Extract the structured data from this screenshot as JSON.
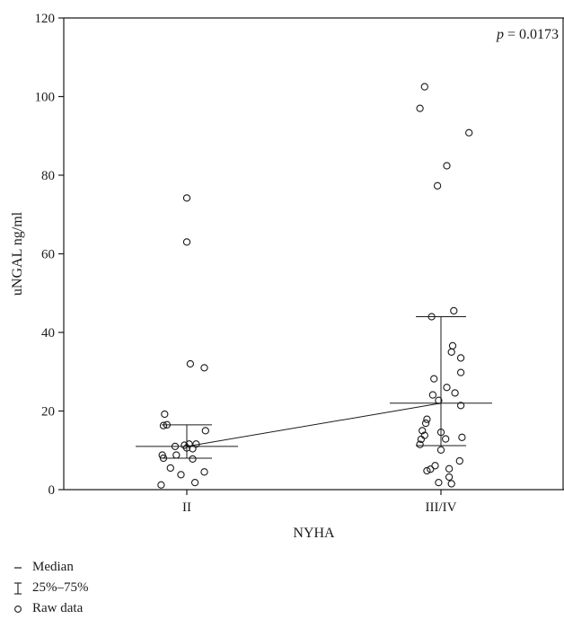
{
  "chart_data": {
    "type": "scatter",
    "xlabel": "NYHA",
    "ylabel": "uNGAL ng/ml",
    "categories": [
      "II",
      "III/IV"
    ],
    "ylim": [
      0,
      120
    ],
    "yticks": [
      0,
      20,
      40,
      60,
      80,
      100,
      120
    ],
    "annotation": {
      "p_label": "p",
      "p_text": " = 0.0173"
    },
    "groups": [
      {
        "category": "II",
        "median": 11,
        "q1": 8,
        "q3": 16.5,
        "raw": [
          {
            "jitter": -0.22,
            "y": 1.2
          },
          {
            "jitter": -0.14,
            "y": 5.5
          },
          {
            "jitter": -0.05,
            "y": 3.8
          },
          {
            "jitter": 0.07,
            "y": 1.8
          },
          {
            "jitter": 0.15,
            "y": 4.5
          },
          {
            "jitter": -0.21,
            "y": 8.8
          },
          {
            "jitter": -0.2,
            "y": 8
          },
          {
            "jitter": -0.09,
            "y": 8.8
          },
          {
            "jitter": 0.05,
            "y": 7.8
          },
          {
            "jitter": -0.1,
            "y": 11
          },
          {
            "jitter": -0.02,
            "y": 11.3
          },
          {
            "jitter": 0.02,
            "y": 11.6
          },
          {
            "jitter": 0.05,
            "y": 10.4
          },
          {
            "jitter": 0.08,
            "y": 11.6
          },
          {
            "jitter": 0.0,
            "y": 10.6
          },
          {
            "jitter": 0.16,
            "y": 15
          },
          {
            "jitter": -0.2,
            "y": 16.3
          },
          {
            "jitter": -0.17,
            "y": 16.5
          },
          {
            "jitter": -0.19,
            "y": 19.2
          },
          {
            "jitter": 0.03,
            "y": 32
          },
          {
            "jitter": 0.15,
            "y": 31
          },
          {
            "jitter": 0.0,
            "y": 63
          },
          {
            "jitter": 0.0,
            "y": 74.2
          }
        ]
      },
      {
        "category": "III/IV",
        "median": 22,
        "q1": 11.2,
        "q3": 44,
        "raw": [
          {
            "jitter": -0.02,
            "y": 1.8
          },
          {
            "jitter": 0.09,
            "y": 1.5
          },
          {
            "jitter": 0.07,
            "y": 3.2
          },
          {
            "jitter": -0.12,
            "y": 4.8
          },
          {
            "jitter": -0.09,
            "y": 5.2
          },
          {
            "jitter": -0.05,
            "y": 6.1
          },
          {
            "jitter": 0.07,
            "y": 5.3
          },
          {
            "jitter": 0.16,
            "y": 7.3
          },
          {
            "jitter": -0.18,
            "y": 11.5
          },
          {
            "jitter": -0.17,
            "y": 12.8
          },
          {
            "jitter": -0.14,
            "y": 13.8
          },
          {
            "jitter": -0.16,
            "y": 15
          },
          {
            "jitter": 0.0,
            "y": 10.1
          },
          {
            "jitter": 0.04,
            "y": 12.9
          },
          {
            "jitter": 0.0,
            "y": 14.6
          },
          {
            "jitter": 0.18,
            "y": 13.3
          },
          {
            "jitter": -0.13,
            "y": 16.9
          },
          {
            "jitter": -0.12,
            "y": 17.9
          },
          {
            "jitter": -0.07,
            "y": 24.1
          },
          {
            "jitter": -0.02,
            "y": 22.7
          },
          {
            "jitter": 0.05,
            "y": 26
          },
          {
            "jitter": 0.12,
            "y": 24.6
          },
          {
            "jitter": 0.17,
            "y": 21.4
          },
          {
            "jitter": -0.06,
            "y": 28.2
          },
          {
            "jitter": 0.17,
            "y": 29.8
          },
          {
            "jitter": 0.17,
            "y": 33.5
          },
          {
            "jitter": 0.09,
            "y": 35
          },
          {
            "jitter": 0.1,
            "y": 36.6
          },
          {
            "jitter": -0.08,
            "y": 44
          },
          {
            "jitter": 0.11,
            "y": 45.5
          },
          {
            "jitter": -0.03,
            "y": 77.3
          },
          {
            "jitter": 0.05,
            "y": 82.4
          },
          {
            "jitter": 0.24,
            "y": 90.8
          },
          {
            "jitter": -0.18,
            "y": 97
          },
          {
            "jitter": -0.14,
            "y": 102.5
          }
        ]
      }
    ],
    "legend": [
      {
        "symbol": "median-dash",
        "label": "Median"
      },
      {
        "symbol": "iqr-bracket",
        "label": "25%–75%"
      },
      {
        "symbol": "open-circle",
        "label": "Raw data"
      }
    ]
  }
}
